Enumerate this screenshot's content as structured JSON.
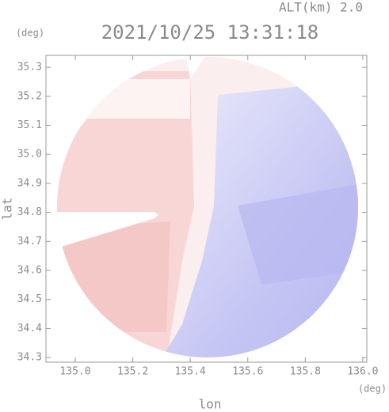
{
  "chart_data": {
    "type": "map",
    "title": "2021/10/25 13:31:18",
    "subtitle": "ALT(km) 2.0",
    "x_label": "lon",
    "y_label": "lat",
    "x_unit": "(deg)",
    "y_unit": "(deg)",
    "xlim": [
      134.898,
      136.014
    ],
    "ylim": [
      34.284,
      35.341
    ],
    "xticks": [
      {
        "value": 135.0,
        "label": "135.0"
      },
      135.2,
      135.4,
      135.6,
      135.8,
      {
        "value": 136.0,
        "label": "136.0"
      }
    ],
    "yticks": [
      34.3,
      34.4,
      34.5,
      34.6,
      34.7,
      34.8,
      34.9,
      {
        "value": 35.0,
        "label": "35.0"
      },
      35.1,
      35.2,
      35.3
    ]
  }
}
